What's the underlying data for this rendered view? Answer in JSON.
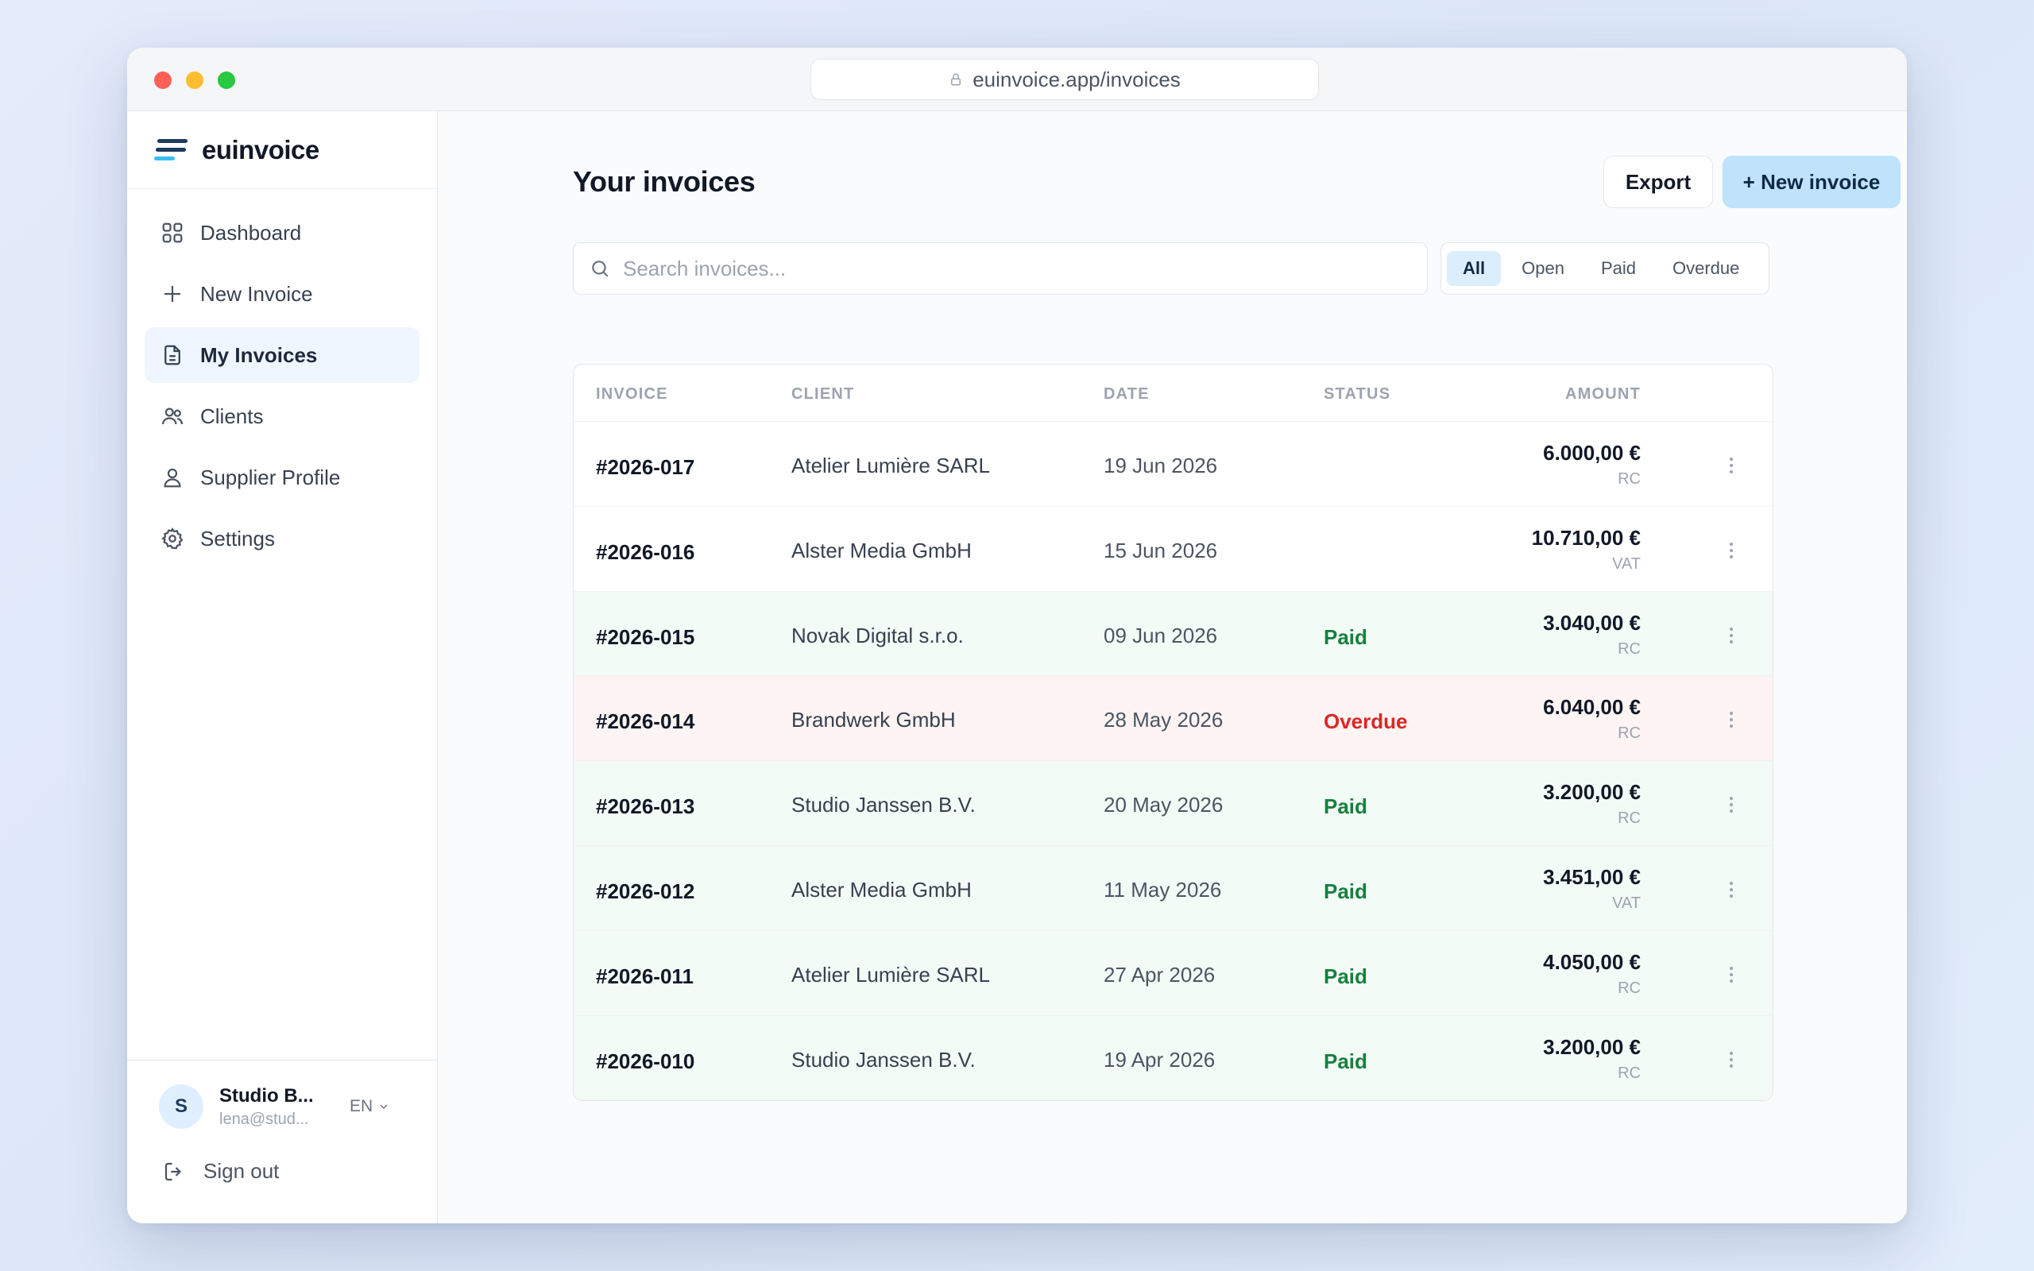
{
  "browser": {
    "url": "euinvoice.app/invoices"
  },
  "brand": {
    "name": "euinvoice"
  },
  "sidebar": {
    "items": [
      {
        "label": "Dashboard"
      },
      {
        "label": "New Invoice"
      },
      {
        "label": "My Invoices",
        "active": true
      },
      {
        "label": "Clients"
      },
      {
        "label": "Supplier Profile"
      },
      {
        "label": "Settings"
      }
    ],
    "user": {
      "initial": "S",
      "name": "Studio B...",
      "email": "lena@stud...",
      "lang": "EN"
    },
    "signout": "Sign out"
  },
  "main": {
    "title": "Your invoices",
    "export_label": "Export",
    "new_label": "+ New invoice",
    "search_placeholder": "Search invoices...",
    "filters": [
      "All",
      "Open",
      "Paid",
      "Overdue"
    ],
    "active_filter": "All"
  },
  "table": {
    "columns": [
      "INVOICE",
      "CLIENT",
      "DATE",
      "STATUS",
      "AMOUNT"
    ],
    "rows": [
      {
        "invoice": "#2026-017",
        "client": "Atelier Lumière SARL",
        "date": "19 Jun 2026",
        "status": "",
        "amount": "6.000,00 €",
        "tax": "RC"
      },
      {
        "invoice": "#2026-016",
        "client": "Alster Media GmbH",
        "date": "15 Jun 2026",
        "status": "",
        "amount": "10.710,00 €",
        "tax": "VAT"
      },
      {
        "invoice": "#2026-015",
        "client": "Novak Digital s.r.o.",
        "date": "09 Jun 2026",
        "status": "Paid",
        "amount": "3.040,00 €",
        "tax": "RC"
      },
      {
        "invoice": "#2026-014",
        "client": "Brandwerk GmbH",
        "date": "28 May 2026",
        "status": "Overdue",
        "amount": "6.040,00 €",
        "tax": "RC"
      },
      {
        "invoice": "#2026-013",
        "client": "Studio Janssen B.V.",
        "date": "20 May 2026",
        "status": "Paid",
        "amount": "3.200,00 €",
        "tax": "RC"
      },
      {
        "invoice": "#2026-012",
        "client": "Alster Media GmbH",
        "date": "11 May 2026",
        "status": "Paid",
        "amount": "3.451,00 €",
        "tax": "VAT"
      },
      {
        "invoice": "#2026-011",
        "client": "Atelier Lumière SARL",
        "date": "27 Apr 2026",
        "status": "Paid",
        "amount": "4.050,00 €",
        "tax": "RC"
      },
      {
        "invoice": "#2026-010",
        "client": "Studio Janssen B.V.",
        "date": "19 Apr 2026",
        "status": "Paid",
        "amount": "3.200,00 €",
        "tax": "RC"
      }
    ]
  },
  "colors": {
    "accent": "#bfe3fb",
    "paid": "#15803d",
    "overdue": "#dc2626",
    "paid_row": "#f3fbf6",
    "overdue_row": "#fdf4f3"
  }
}
